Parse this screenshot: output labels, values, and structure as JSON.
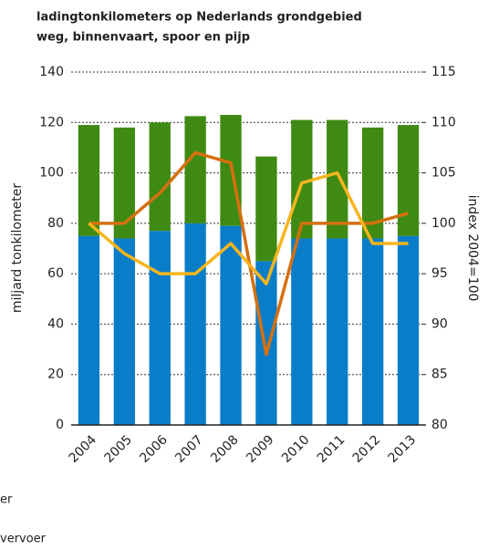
{
  "chart_data": {
    "type": "bar",
    "title": "ladingtonkilometers op Nederlands grondgebied",
    "subtitle": "weg, binnenvaart, spoor en pijp",
    "y_label": "miljard tonkilometer",
    "y2_label": "index 2004=100",
    "categories": [
      "2004",
      "2005",
      "2006",
      "2007",
      "2008",
      "2009",
      "2010",
      "2011",
      "2012",
      "2013"
    ],
    "series": [
      {
        "name": "er",
        "color": "#0a7dc8",
        "values": [
          75,
          74,
          77,
          80,
          79,
          65,
          74,
          74,
          74,
          75
        ]
      },
      {
        "name": "vervoer",
        "color": "#3f8a13",
        "values": [
          44,
          44,
          43,
          42.5,
          44,
          41.5,
          47,
          47,
          44,
          44
        ]
      },
      {
        "type": "line",
        "axis": "y2",
        "color": "#d5700f",
        "values": [
          100,
          100,
          103,
          107,
          106,
          87,
          100,
          100,
          100,
          101
        ]
      },
      {
        "type": "line",
        "axis": "y2",
        "color": "#f6b51e",
        "values": [
          100,
          97,
          95,
          95,
          98,
          94,
          104,
          105,
          98,
          98
        ]
      }
    ],
    "stacked": true,
    "ylim": [
      0,
      140
    ],
    "yticks": [
      0,
      20,
      40,
      60,
      80,
      100,
      120,
      140
    ],
    "y2lim": [
      80,
      115
    ],
    "y2ticks": [
      80,
      85,
      90,
      95,
      100,
      105,
      110,
      115
    ],
    "grid": true
  }
}
